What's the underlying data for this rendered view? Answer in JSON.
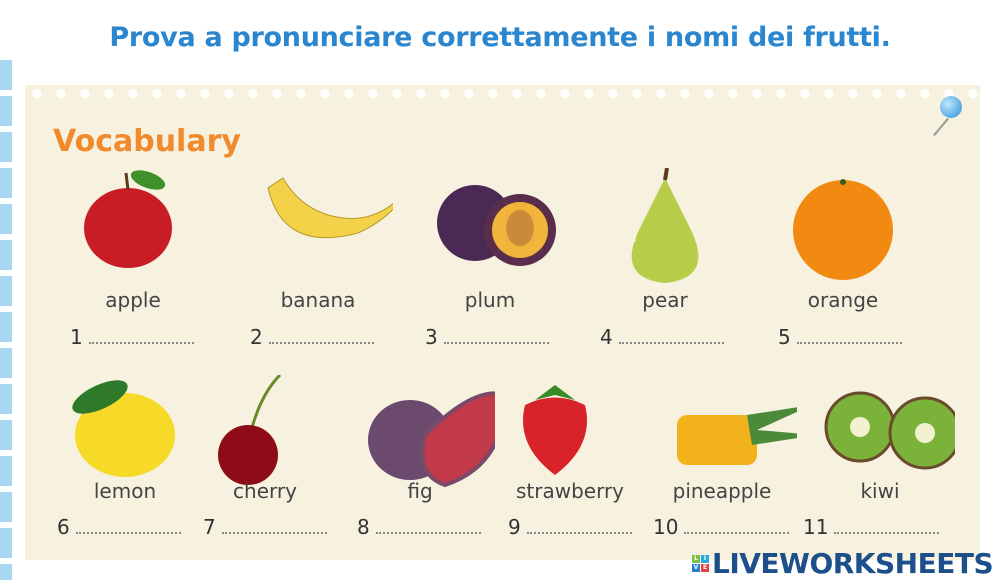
{
  "title": "Prova a pronunciare correttamente i nomi dei frutti.",
  "section_title": "Vocabulary",
  "fruits": [
    {
      "name": "apple",
      "number": "1",
      "color": "#c81d25"
    },
    {
      "name": "banana",
      "number": "2",
      "color": "#f3d24a"
    },
    {
      "name": "plum",
      "number": "3",
      "color": "#4a2a55"
    },
    {
      "name": "pear",
      "number": "4",
      "color": "#b7cd4a"
    },
    {
      "name": "orange",
      "number": "5",
      "color": "#f28a12"
    },
    {
      "name": "lemon",
      "number": "6",
      "color": "#f7d928"
    },
    {
      "name": "cherry",
      "number": "7",
      "color": "#8e0c18"
    },
    {
      "name": "fig",
      "number": "8",
      "color": "#6b4a6e"
    },
    {
      "name": "strawberry",
      "number": "9",
      "color": "#d9232b"
    },
    {
      "name": "pineapple",
      "number": "10",
      "color": "#f2b21c"
    },
    {
      "name": "kiwi",
      "number": "11",
      "color": "#7bb33a"
    }
  ],
  "logo": {
    "text": "LIVEWORKSHEETS",
    "letters": [
      "L",
      "I",
      "V",
      "E"
    ],
    "colors": [
      "#7cc142",
      "#29a8e0",
      "#2a7fd0",
      "#e8413c"
    ]
  }
}
